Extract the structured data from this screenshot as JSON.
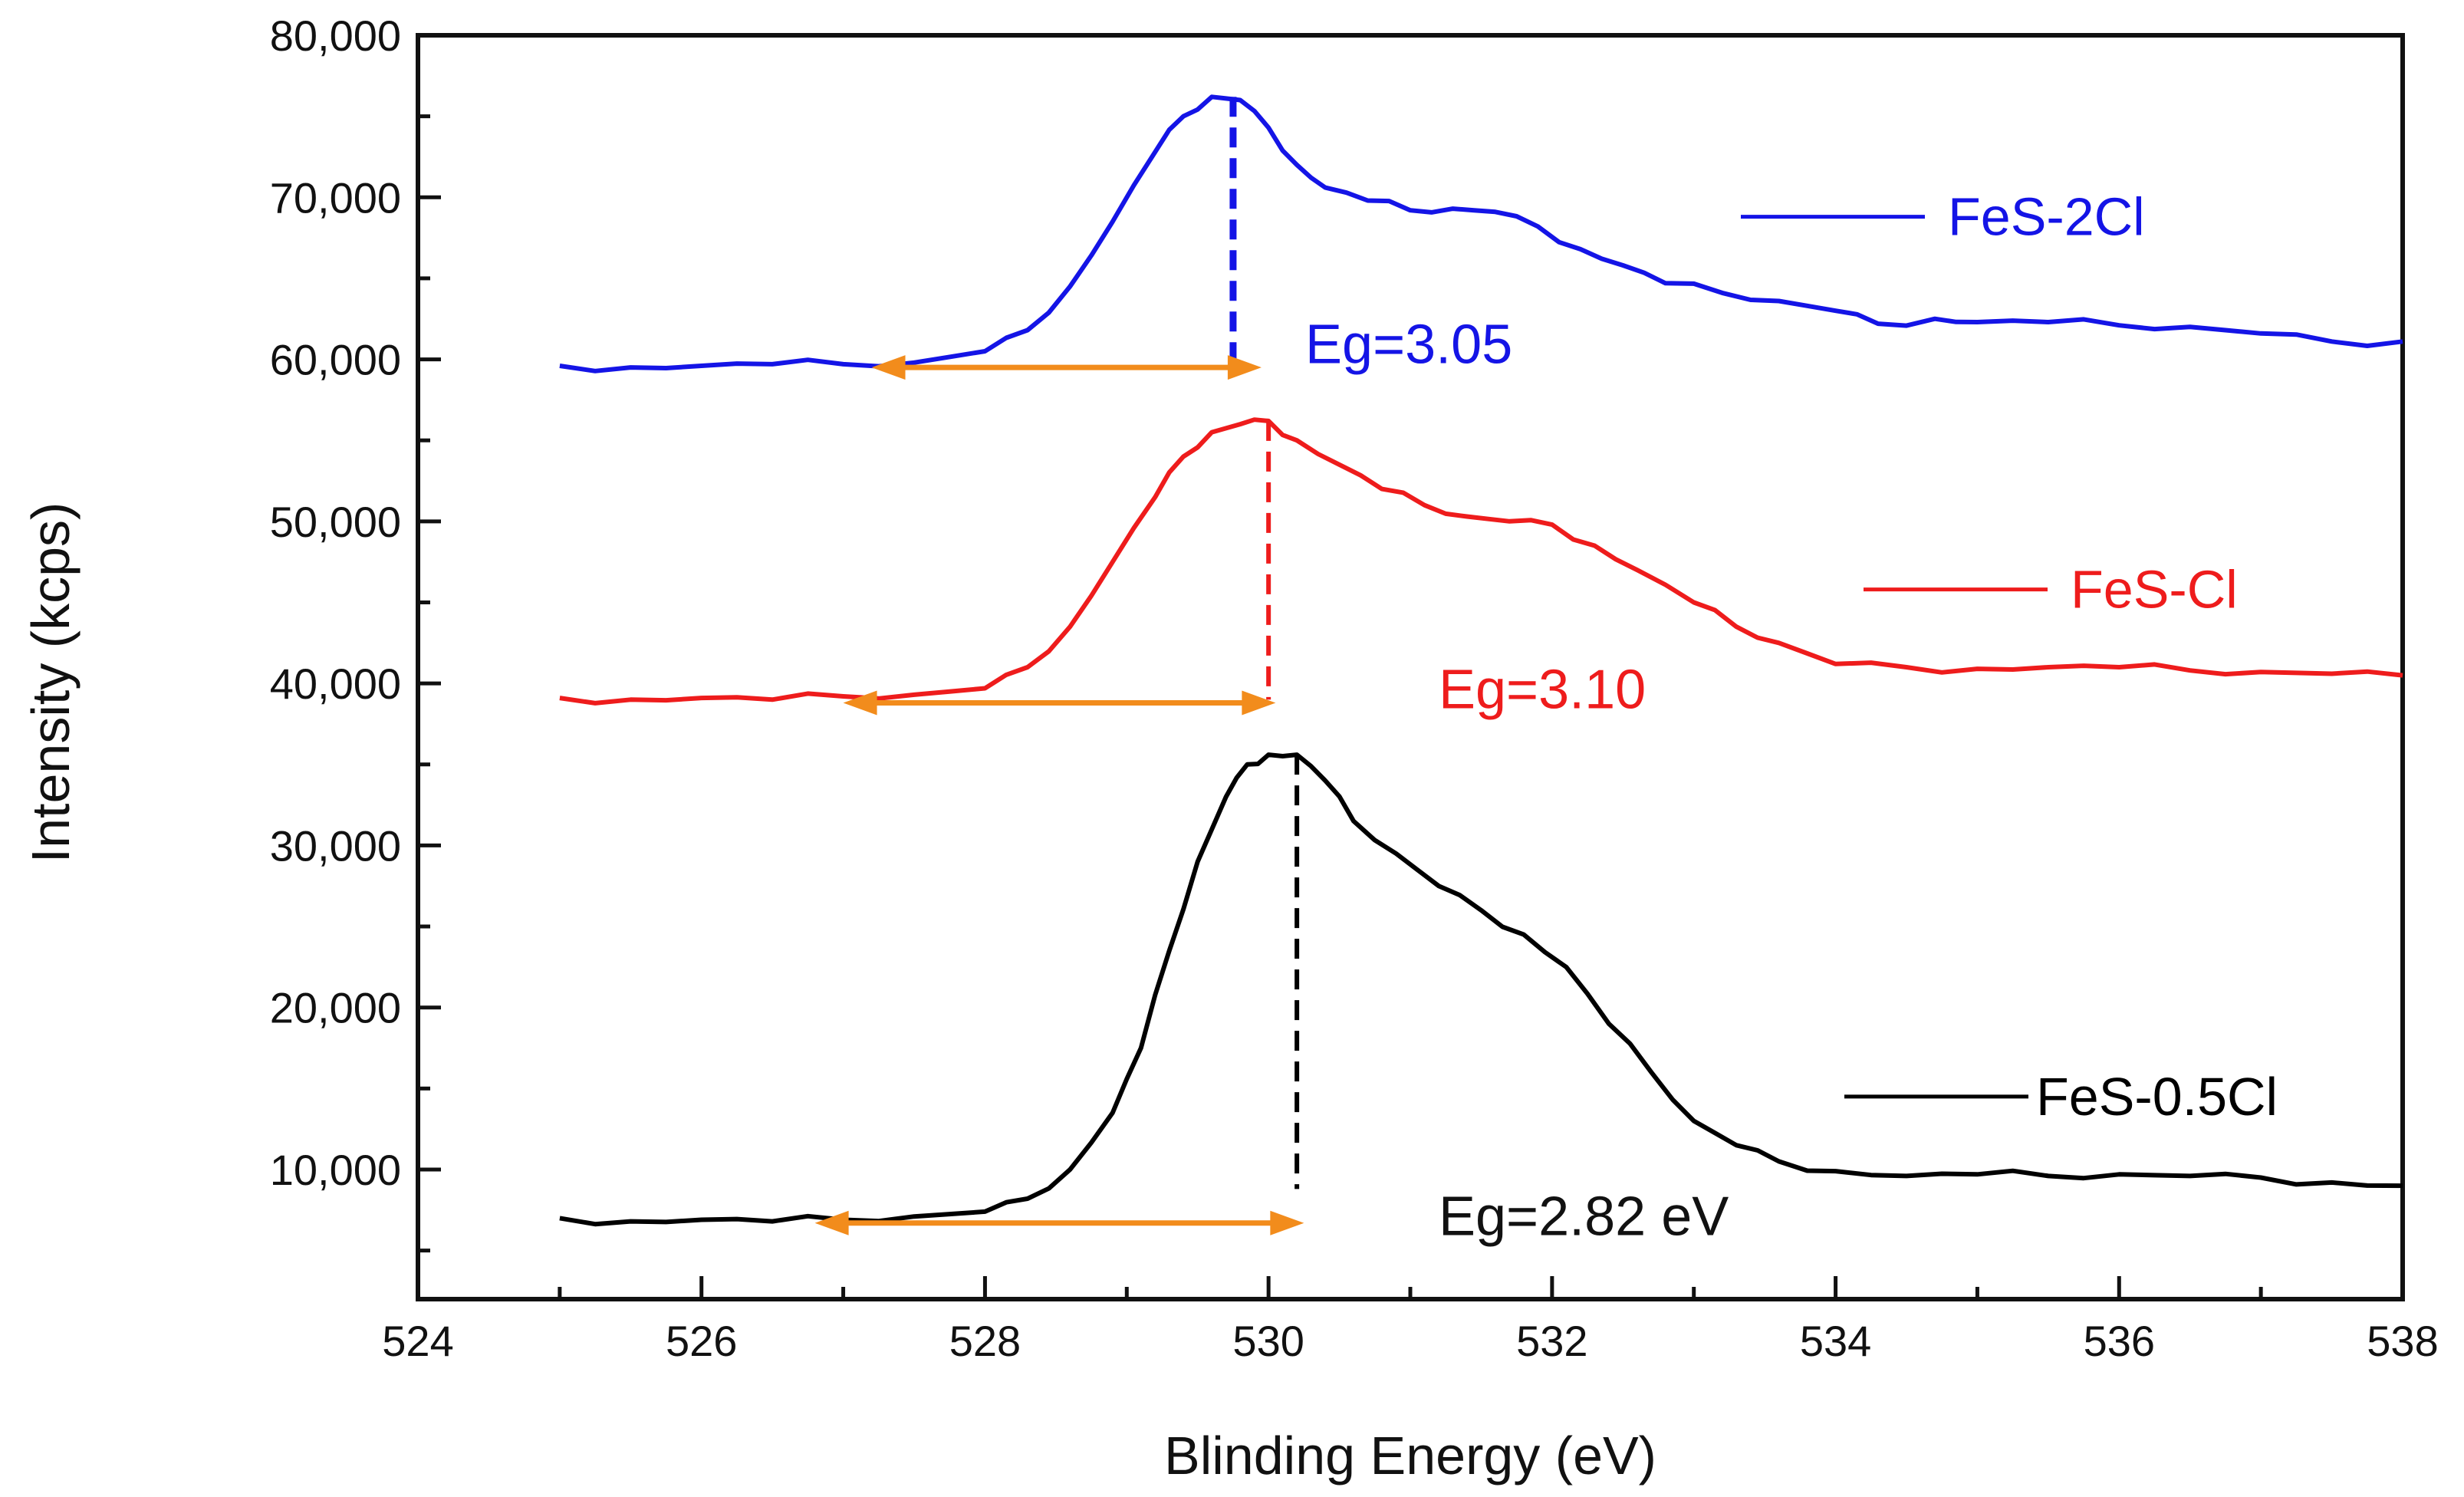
{
  "chart_data": {
    "type": "line",
    "title": "",
    "xlabel": "Blinding Energy (eV)",
    "ylabel": "Intensity (kcps)",
    "xlim": [
      524,
      538
    ],
    "ylim": [
      2000,
      80000
    ],
    "xticks": [
      524,
      526,
      528,
      530,
      532,
      534,
      536,
      538
    ],
    "xtick_labels": [
      "524",
      "526",
      "528",
      "530",
      "532",
      "534",
      "536",
      "538"
    ],
    "yticks": [
      10000,
      20000,
      30000,
      40000,
      50000,
      60000,
      70000,
      80000
    ],
    "ytick_labels": [
      "10,000",
      "20,000",
      "30,000",
      "40,000",
      "50,000",
      "60,000",
      "70,000",
      "80,000"
    ],
    "grid": false,
    "legend_position": "right",
    "series": [
      {
        "name": "FeS-2Cl",
        "color": "#1414e6",
        "x": [
          525.0,
          525.5,
          526.0,
          526.5,
          527.0,
          527.5,
          528.0,
          528.3,
          528.6,
          528.9,
          529.2,
          529.4,
          529.6,
          529.8,
          530.0,
          530.2,
          530.4,
          530.7,
          531.0,
          531.3,
          531.6,
          531.9,
          532.2,
          532.5,
          532.8,
          533.2,
          533.6,
          534.0,
          534.3,
          534.7,
          535.0,
          535.5,
          536.0,
          536.5,
          537.0,
          537.5,
          538.0
        ],
        "y": [
          59600,
          59500,
          59600,
          59700,
          59700,
          59800,
          60500,
          61800,
          64500,
          68500,
          72800,
          75000,
          76200,
          76000,
          74300,
          72000,
          70600,
          69800,
          69200,
          69300,
          69100,
          68200,
          66800,
          65800,
          64700,
          64100,
          63600,
          63000,
          62200,
          62500,
          62300,
          62300,
          62100,
          62000,
          61600,
          61100,
          61100
        ]
      },
      {
        "name": "FeS-Cl",
        "color": "#ee1c1c",
        "x": [
          525.0,
          525.5,
          526.0,
          526.5,
          527.0,
          527.5,
          528.0,
          528.3,
          528.6,
          528.9,
          529.2,
          529.4,
          529.6,
          529.8,
          530.0,
          530.2,
          530.5,
          530.8,
          531.1,
          531.4,
          531.7,
          532.0,
          532.3,
          532.6,
          533.0,
          533.3,
          533.6,
          534.0,
          534.5,
          535.0,
          535.5,
          536.0,
          536.5,
          537.0,
          537.5,
          538.0
        ],
        "y": [
          39100,
          39000,
          39100,
          39000,
          39200,
          39300,
          39700,
          41000,
          43500,
          47500,
          51500,
          54000,
          55500,
          56000,
          56200,
          55000,
          53500,
          52000,
          51000,
          50300,
          50000,
          49800,
          48500,
          47000,
          45000,
          43500,
          42500,
          41200,
          41000,
          40900,
          41000,
          41000,
          40800,
          40700,
          40600,
          40500
        ]
      },
      {
        "name": "FeS-0.5Cl",
        "color": "#000000",
        "x": [
          525.0,
          525.5,
          526.0,
          526.5,
          527.0,
          527.5,
          528.0,
          528.3,
          528.6,
          528.9,
          529.1,
          529.3,
          529.5,
          529.7,
          529.85,
          530.0,
          530.2,
          530.4,
          530.6,
          530.9,
          531.2,
          531.5,
          531.8,
          532.1,
          532.4,
          532.7,
          533.0,
          533.3,
          533.6,
          534.0,
          534.5,
          535.0,
          535.5,
          536.0,
          536.5,
          537.0,
          537.5,
          538.0
        ],
        "y": [
          7000,
          6800,
          6900,
          6800,
          6900,
          7100,
          7400,
          8200,
          10000,
          13500,
          17500,
          23500,
          29000,
          33000,
          35000,
          35600,
          35600,
          34000,
          31500,
          29500,
          27500,
          26000,
          24500,
          22500,
          19000,
          16000,
          13000,
          11500,
          10500,
          9900,
          9600,
          9700,
          9600,
          9700,
          9600,
          9500,
          9200,
          9000
        ]
      }
    ],
    "markers": [
      {
        "name": "FeS-2Cl",
        "peak_x": 529.75,
        "peak_y": 76200,
        "base_y": 60000,
        "arrow_x1": 527.2,
        "arrow_x2": 529.95,
        "arrow_y": 59500,
        "color": "#1414e6",
        "label_x": 530.8,
        "label_y": 60800
      },
      {
        "name": "FeS-Cl",
        "peak_x": 530.0,
        "peak_y": 56200,
        "base_y": 39000,
        "arrow_x1": 527.0,
        "arrow_x2": 530.05,
        "arrow_y": 38800,
        "color": "#ee1c1c",
        "label_x": 531.2,
        "label_y": 39500
      },
      {
        "name": "FeS-0.5Cl",
        "peak_x": 530.2,
        "peak_y": 35600,
        "base_y": 8800,
        "arrow_x1": 526.8,
        "arrow_x2": 530.25,
        "arrow_y": 6700,
        "color": "#000000",
        "label_x": 531.2,
        "label_y": 7000
      }
    ],
    "arrow_color": "#f28c1c",
    "annotations": [
      {
        "text": "Eg=3.05",
        "color": "#1414e6"
      },
      {
        "text": "Eg=3.10",
        "color": "#ee1c1c"
      },
      {
        "text": "Eg=2.82 eV",
        "color": "#111111"
      }
    ],
    "legend": [
      {
        "label": "FeS-2Cl",
        "color": "#1414e6",
        "y_value": 68800
      },
      {
        "label": "FeS-Cl",
        "color": "#ee1c1c",
        "y_value": 45800
      },
      {
        "label": "FeS-0.5Cl",
        "color": "#000000",
        "y_value": 14500
      }
    ]
  }
}
